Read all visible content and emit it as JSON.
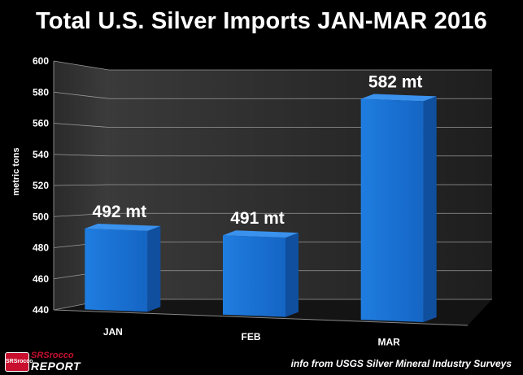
{
  "chart_data": {
    "type": "bar",
    "title": "Total U.S. Silver Imports JAN-MAR 2016",
    "xlabel": "",
    "ylabel": "metric tons",
    "categories": [
      "JAN",
      "FEB",
      "MAR"
    ],
    "values": [
      492,
      491,
      582
    ],
    "data_labels": [
      "492 mt",
      "491 mt",
      "582 mt"
    ],
    "ylim": [
      440,
      600
    ],
    "yticks": [
      440,
      460,
      480,
      500,
      520,
      540,
      560,
      580,
      600
    ],
    "grid": true,
    "bar_color": "#1a6fd0"
  },
  "footer": {
    "logo_badge": "SRSrocco",
    "logo_brand_top": "SRSrocco",
    "logo_brand_bottom": "REPORT",
    "source": "info from USGS Silver Mineral Industry Surveys"
  }
}
